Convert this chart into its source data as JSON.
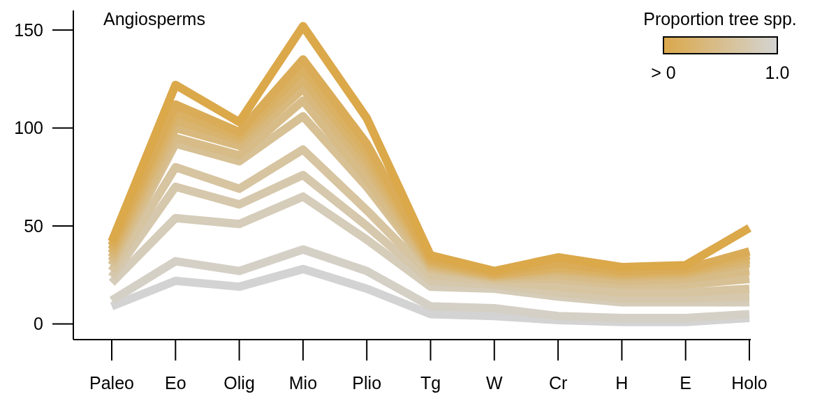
{
  "chart_data": {
    "type": "line",
    "title": "Angiosperms",
    "categories": [
      "Paleo",
      "Eo",
      "Olig",
      "Mio",
      "Plio",
      "Tg",
      "W",
      "Cr",
      "H",
      "E",
      "Holo"
    ],
    "ylim": [
      -8,
      160
    ],
    "yticks": [
      0,
      50,
      100,
      150
    ],
    "grid": false,
    "line_style": "solid",
    "legend_title": "Proportion tree spp.",
    "annotations": [
      "> 0",
      "1.0"
    ],
    "series": [
      {
        "color": "#dba84a",
        "values": [
          42,
          122,
          103,
          152,
          105,
          35,
          27,
          34,
          29,
          30,
          49
        ]
      },
      {
        "color": "#daac58",
        "values": [
          40,
          112,
          98,
          135,
          92,
          33,
          26,
          31,
          27,
          28,
          37
        ]
      },
      {
        "color": "#dab063",
        "values": [
          38,
          108,
          96,
          130,
          88,
          32,
          25,
          29,
          26,
          27,
          35
        ]
      },
      {
        "color": "#d9b46f",
        "values": [
          36,
          104,
          94,
          125,
          84,
          31,
          25,
          28,
          25,
          26,
          33
        ]
      },
      {
        "color": "#d8b87c",
        "values": [
          34,
          100,
          91,
          120,
          80,
          30,
          24,
          27,
          24,
          25,
          31
        ]
      },
      {
        "color": "#d8bc88",
        "values": [
          32,
          95,
          86,
          114,
          74,
          29,
          24,
          25,
          22,
          23,
          27
        ]
      },
      {
        "color": "#d7c094",
        "values": [
          30,
          92,
          83,
          106,
          70,
          28,
          23,
          23,
          20,
          20,
          23
        ]
      },
      {
        "color": "#d7c4a0",
        "values": [
          27,
          80,
          69,
          89,
          58,
          25,
          22,
          19,
          16,
          16,
          18
        ]
      },
      {
        "color": "#d6c8ac",
        "values": [
          24,
          70,
          61,
          76,
          50,
          22,
          20,
          16,
          13,
          13,
          14
        ]
      },
      {
        "color": "#d5ccb9",
        "values": [
          21,
          54,
          51,
          65,
          43,
          19,
          18,
          14,
          11,
          11,
          11
        ]
      },
      {
        "color": "#d5d0c6",
        "values": [
          12,
          32,
          27,
          38,
          27,
          9,
          8,
          4,
          3,
          3,
          5
        ]
      },
      {
        "color": "#d3d3d3",
        "values": [
          9,
          22,
          19,
          28,
          18,
          5,
          4,
          2,
          1,
          1,
          3
        ]
      }
    ]
  }
}
